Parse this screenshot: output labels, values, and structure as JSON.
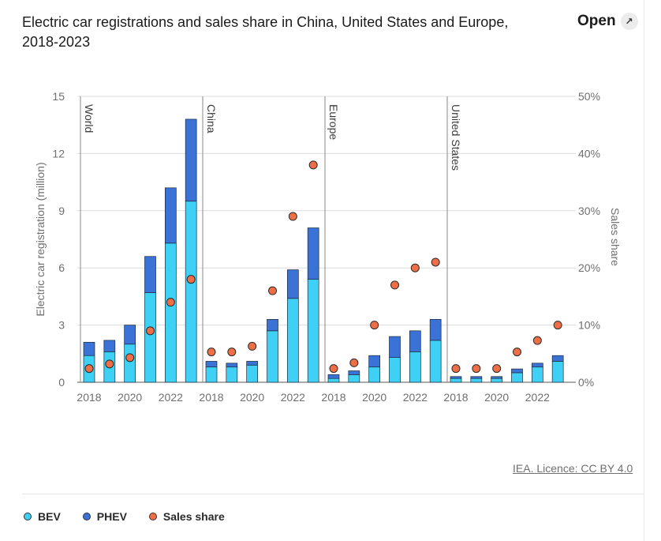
{
  "header": {
    "title": "Electric car registrations and sales share in China, United States and Europe, 2018-2023",
    "open_label": "Open",
    "open_icon": "external-link-icon"
  },
  "source": "IEA. Licence: CC BY 4.0",
  "colors": {
    "bev": "#3fd0f5",
    "phev": "#3a72d6",
    "sales_share": "#f06e45",
    "grid": "#dcdcdc",
    "divider": "#888888"
  },
  "legend": [
    {
      "label": "BEV",
      "color": "#3fd0f5"
    },
    {
      "label": "PHEV",
      "color": "#3a72d6"
    },
    {
      "label": "Sales share",
      "color": "#f06e45"
    }
  ],
  "chart_data": {
    "type": "bar",
    "stacked": true,
    "ylabel": "Electric car registration (million)",
    "y2label": "Sales share",
    "ylim": [
      0,
      15
    ],
    "yticks": [
      "0",
      "3",
      "6",
      "9",
      "12",
      "15"
    ],
    "y2lim": [
      0,
      50
    ],
    "y2ticks": [
      "0%",
      "10%",
      "20%",
      "30%",
      "40%",
      "50%"
    ],
    "grid": true,
    "legend_position": "bottom",
    "panels": [
      {
        "name": "World",
        "years": [
          2018,
          2019,
          2020,
          2021,
          2022,
          2023
        ],
        "tick_labels": [
          "2018",
          "",
          "2020",
          "",
          "2022",
          ""
        ],
        "bev": [
          1.4,
          1.6,
          2.0,
          4.7,
          7.3,
          9.5
        ],
        "phev": [
          0.7,
          0.6,
          1.0,
          1.9,
          2.9,
          4.3
        ],
        "sales_share": [
          2.4,
          3.2,
          4.3,
          9.0,
          14.0,
          18.0
        ]
      },
      {
        "name": "China",
        "years": [
          2018,
          2019,
          2020,
          2021,
          2022,
          2023
        ],
        "tick_labels": [
          "2018",
          "",
          "2020",
          "",
          "2022",
          ""
        ],
        "bev": [
          0.8,
          0.8,
          0.9,
          2.7,
          4.4,
          5.4
        ],
        "phev": [
          0.3,
          0.2,
          0.2,
          0.6,
          1.5,
          2.7
        ],
        "sales_share": [
          5.3,
          5.3,
          6.3,
          16.0,
          29.0,
          38.0
        ]
      },
      {
        "name": "Europe",
        "years": [
          2018,
          2019,
          2020,
          2021,
          2022,
          2023
        ],
        "tick_labels": [
          "2018",
          "",
          "2020",
          "",
          "2022",
          ""
        ],
        "bev": [
          0.2,
          0.4,
          0.8,
          1.3,
          1.6,
          2.2
        ],
        "phev": [
          0.2,
          0.2,
          0.6,
          1.1,
          1.1,
          1.1
        ],
        "sales_share": [
          2.4,
          3.4,
          10.0,
          17.0,
          20.0,
          21.0
        ]
      },
      {
        "name": "United States",
        "years": [
          2018,
          2019,
          2020,
          2021,
          2022,
          2023
        ],
        "tick_labels": [
          "2018",
          "",
          "2020",
          "",
          "2022",
          ""
        ],
        "bev": [
          0.2,
          0.2,
          0.2,
          0.5,
          0.8,
          1.1
        ],
        "phev": [
          0.1,
          0.1,
          0.1,
          0.2,
          0.2,
          0.3
        ],
        "sales_share": [
          2.4,
          2.4,
          2.4,
          5.3,
          7.3,
          10.0
        ]
      }
    ]
  }
}
